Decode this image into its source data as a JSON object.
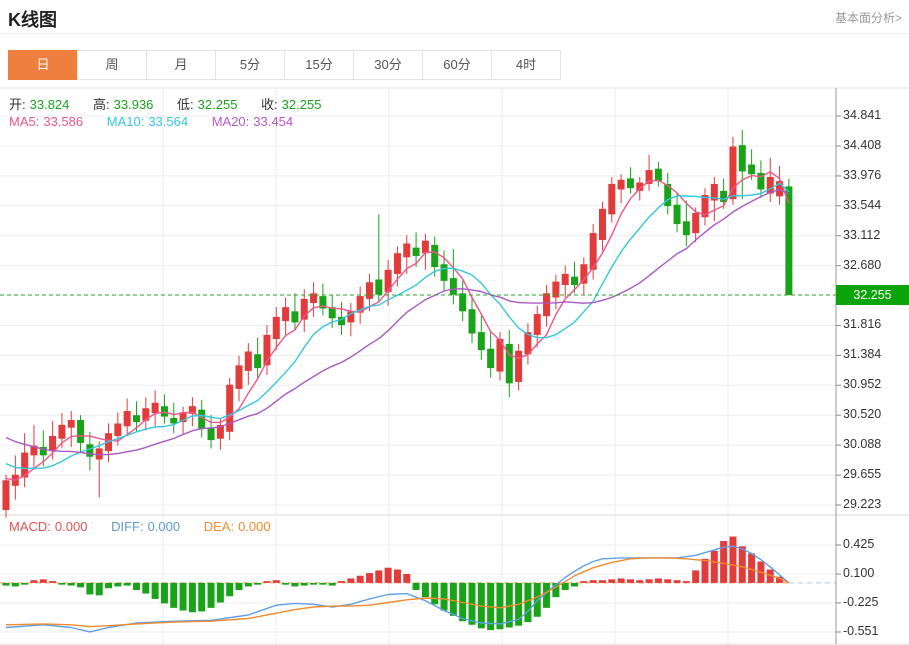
{
  "header": {
    "title": "K线图",
    "link": "基本面分析>"
  },
  "tabs": {
    "selected_index": 0,
    "items": [
      {
        "label": "日"
      },
      {
        "label": "周"
      },
      {
        "label": "月"
      },
      {
        "label": "5分"
      },
      {
        "label": "15分"
      },
      {
        "label": "30分"
      },
      {
        "label": "60分"
      },
      {
        "label": "4时"
      }
    ]
  },
  "info_bar": {
    "open_label": "开:",
    "open": "33.824",
    "high_label": "高:",
    "high": "33.936",
    "low_label": "低:",
    "low": "32.255",
    "close_label": "收:",
    "close": "32.255"
  },
  "ma_bar": {
    "ma5_label": "MA5:",
    "ma5": "33.586",
    "ma10_label": "MA10:",
    "ma10": "33.564",
    "ma20_label": "MA20:",
    "ma20": "33.454"
  },
  "macd_bar": {
    "macd_label": "MACD:",
    "macd": "0.000",
    "diff_label": "DIFF:",
    "diff": "0.000",
    "dea_label": "DEA:",
    "dea": "0.000"
  },
  "colors": {
    "up": "#e23b3b",
    "down": "#19a319",
    "ma5": "#f0558c",
    "ma10": "#35c6e0",
    "ma20": "#a959c4",
    "diff_line": "#5f9fe8",
    "dea_line": "#ef8b2f",
    "tab_selected": "#ee7f3e",
    "badge": "#0ba50b",
    "price_line": "#2aa52a",
    "zero_line": "#f0a050",
    "trail_line": "#a9c9ef",
    "grid": "#ececec",
    "axis": "#999999"
  },
  "chart_data": {
    "type": "candlestick+macd",
    "title": "K线图",
    "legend": [
      "MA5",
      "MA10",
      "MA20",
      "MACD",
      "DIFF",
      "DEA"
    ],
    "last_price": "32.255",
    "last_price_value": 32.255,
    "price_axis_labels": [
      "34.841",
      "34.408",
      "33.976",
      "33.544",
      "33.112",
      "32.680",
      "31.816",
      "31.384",
      "30.952",
      "30.520",
      "30.088",
      "29.655",
      "29.223"
    ],
    "price_axis_values": [
      34.841,
      34.408,
      33.976,
      33.544,
      33.112,
      32.68,
      31.816,
      31.384,
      30.952,
      30.52,
      30.088,
      29.655,
      29.223
    ],
    "price_axis_range": [
      34.841,
      29.223
    ],
    "macd_axis_labels": [
      "0.425",
      "0.100",
      "-0.225",
      "-0.551"
    ],
    "macd_axis_values": [
      0.425,
      0.1,
      -0.225,
      -0.551
    ],
    "candles_ohlc": [
      [
        29.15,
        29.66,
        29.04,
        29.58
      ],
      [
        29.5,
        29.94,
        29.3,
        29.66
      ],
      [
        29.62,
        30.26,
        29.48,
        29.98
      ],
      [
        29.94,
        30.38,
        29.74,
        30.08
      ],
      [
        30.06,
        30.3,
        29.78,
        29.94
      ],
      [
        30.0,
        30.44,
        29.88,
        30.22
      ],
      [
        30.18,
        30.55,
        30.04,
        30.38
      ],
      [
        30.34,
        30.58,
        30.06,
        30.45
      ],
      [
        30.45,
        30.52,
        29.98,
        30.12
      ],
      [
        30.1,
        30.28,
        29.72,
        29.92
      ],
      [
        29.88,
        30.14,
        29.33,
        30.04
      ],
      [
        30.0,
        30.4,
        29.84,
        30.26
      ],
      [
        30.22,
        30.56,
        30.08,
        30.4
      ],
      [
        30.36,
        30.76,
        30.22,
        30.58
      ],
      [
        30.52,
        30.72,
        30.28,
        30.42
      ],
      [
        30.44,
        30.78,
        30.3,
        30.62
      ],
      [
        30.55,
        30.88,
        30.36,
        30.7
      ],
      [
        30.65,
        30.82,
        30.4,
        30.5
      ],
      [
        30.48,
        30.7,
        30.26,
        30.4
      ],
      [
        30.42,
        30.64,
        30.24,
        30.56
      ],
      [
        30.54,
        30.78,
        30.36,
        30.65
      ],
      [
        30.6,
        30.74,
        30.2,
        30.32
      ],
      [
        30.34,
        30.52,
        30.04,
        30.16
      ],
      [
        30.18,
        30.48,
        30.02,
        30.38
      ],
      [
        30.28,
        31.06,
        30.16,
        30.96
      ],
      [
        30.9,
        31.38,
        30.72,
        31.24
      ],
      [
        31.16,
        31.56,
        30.96,
        31.44
      ],
      [
        31.4,
        31.64,
        31.06,
        31.2
      ],
      [
        31.24,
        31.82,
        31.1,
        31.68
      ],
      [
        31.62,
        32.08,
        31.46,
        31.94
      ],
      [
        31.88,
        32.22,
        31.68,
        32.08
      ],
      [
        32.02,
        32.28,
        31.74,
        31.86
      ],
      [
        31.9,
        32.34,
        31.72,
        32.2
      ],
      [
        32.14,
        32.44,
        31.94,
        32.28
      ],
      [
        32.24,
        32.42,
        31.96,
        32.06
      ],
      [
        32.08,
        32.26,
        31.78,
        31.92
      ],
      [
        31.94,
        32.16,
        31.68,
        31.82
      ],
      [
        31.86,
        32.14,
        31.66,
        32.02
      ],
      [
        32.0,
        32.38,
        31.84,
        32.24
      ],
      [
        32.2,
        32.56,
        32.02,
        32.44
      ],
      [
        32.48,
        33.42,
        32.16,
        32.26
      ],
      [
        32.3,
        32.76,
        32.1,
        32.62
      ],
      [
        32.56,
        32.96,
        32.38,
        32.86
      ],
      [
        32.8,
        33.12,
        32.56,
        33.0
      ],
      [
        32.94,
        33.16,
        32.66,
        32.82
      ],
      [
        32.86,
        33.14,
        32.62,
        33.04
      ],
      [
        32.98,
        33.1,
        32.52,
        32.66
      ],
      [
        32.7,
        32.9,
        32.32,
        32.46
      ],
      [
        32.5,
        32.92,
        32.12,
        32.26
      ],
      [
        32.28,
        32.46,
        31.88,
        32.02
      ],
      [
        32.05,
        32.24,
        31.56,
        31.7
      ],
      [
        31.72,
        31.96,
        31.32,
        31.46
      ],
      [
        31.48,
        31.72,
        31.06,
        31.2
      ],
      [
        31.15,
        31.72,
        31.02,
        31.62
      ],
      [
        31.55,
        31.75,
        30.78,
        30.98
      ],
      [
        31.0,
        31.55,
        30.88,
        31.45
      ],
      [
        31.4,
        31.85,
        31.25,
        31.72
      ],
      [
        31.68,
        32.1,
        31.5,
        31.98
      ],
      [
        31.95,
        32.4,
        31.8,
        32.28
      ],
      [
        32.22,
        32.55,
        32.05,
        32.45
      ],
      [
        32.4,
        32.68,
        32.22,
        32.56
      ],
      [
        32.52,
        32.74,
        32.28,
        32.4
      ],
      [
        32.42,
        32.8,
        32.26,
        32.7
      ],
      [
        32.62,
        33.28,
        32.48,
        33.15
      ],
      [
        33.05,
        33.6,
        32.9,
        33.5
      ],
      [
        33.42,
        33.96,
        33.3,
        33.86
      ],
      [
        33.78,
        34.0,
        33.58,
        33.92
      ],
      [
        33.94,
        34.1,
        33.72,
        33.8
      ],
      [
        33.76,
        33.96,
        33.62,
        33.88
      ],
      [
        33.86,
        34.28,
        33.76,
        34.06
      ],
      [
        34.08,
        34.18,
        33.82,
        33.9
      ],
      [
        33.86,
        34.02,
        33.42,
        33.54
      ],
      [
        33.56,
        33.72,
        33.16,
        33.28
      ],
      [
        33.32,
        33.62,
        32.96,
        33.12
      ],
      [
        33.15,
        33.52,
        33.02,
        33.44
      ],
      [
        33.38,
        33.8,
        33.26,
        33.7
      ],
      [
        33.62,
        33.96,
        33.32,
        33.86
      ],
      [
        33.76,
        33.94,
        33.5,
        33.6
      ],
      [
        33.64,
        34.54,
        33.56,
        34.4
      ],
      [
        34.42,
        34.64,
        33.64,
        34.04
      ],
      [
        34.14,
        34.36,
        33.92,
        34.0
      ],
      [
        34.02,
        34.2,
        33.66,
        33.78
      ],
      [
        33.72,
        34.24,
        33.6,
        33.96
      ],
      [
        33.68,
        34.12,
        33.56,
        33.9
      ],
      [
        33.824,
        33.936,
        32.255,
        32.255
      ]
    ],
    "ma_windows": [
      5,
      10,
      20
    ],
    "ma_seed_closes": [
      30.9,
      30.85,
      30.8,
      30.74,
      30.68,
      30.62,
      30.55,
      30.48,
      30.42,
      30.35,
      30.28,
      30.2,
      30.12,
      30.04,
      29.95,
      29.86,
      29.76,
      29.66,
      29.56,
      29.46
    ],
    "macd_hist": [
      -0.03,
      -0.04,
      -0.02,
      0.03,
      0.04,
      0.02,
      -0.02,
      -0.03,
      -0.05,
      -0.13,
      -0.14,
      -0.06,
      -0.04,
      -0.03,
      -0.08,
      -0.12,
      -0.18,
      -0.23,
      -0.28,
      -0.31,
      -0.33,
      -0.32,
      -0.28,
      -0.22,
      -0.15,
      -0.08,
      -0.04,
      -0.02,
      0.02,
      0.03,
      -0.02,
      -0.04,
      -0.03,
      -0.02,
      -0.02,
      -0.03,
      0.02,
      0.05,
      0.08,
      0.11,
      0.14,
      0.17,
      0.15,
      0.1,
      -0.08,
      -0.16,
      -0.24,
      -0.31,
      -0.37,
      -0.43,
      -0.47,
      -0.51,
      -0.53,
      -0.52,
      -0.5,
      -0.48,
      -0.44,
      -0.38,
      -0.28,
      -0.16,
      -0.08,
      -0.04,
      0.02,
      0.03,
      0.03,
      0.04,
      0.05,
      0.04,
      0.03,
      0.04,
      0.05,
      0.04,
      0.03,
      0.02,
      0.14,
      0.27,
      0.36,
      0.47,
      0.52,
      0.41,
      0.33,
      0.24,
      0.15,
      0.07,
      0.0
    ],
    "diff_points": [
      [
        0,
        -0.5
      ],
      [
        4,
        -0.47
      ],
      [
        7,
        -0.5
      ],
      [
        9,
        -0.55
      ],
      [
        11,
        -0.5
      ],
      [
        14,
        -0.45
      ],
      [
        18,
        -0.43
      ],
      [
        22,
        -0.42
      ],
      [
        26,
        -0.36
      ],
      [
        29,
        -0.25
      ],
      [
        31,
        -0.23
      ],
      [
        33,
        -0.24
      ],
      [
        35,
        -0.27
      ],
      [
        37,
        -0.24
      ],
      [
        39,
        -0.18
      ],
      [
        41,
        -0.13
      ],
      [
        43,
        -0.12
      ],
      [
        45,
        -0.2
      ],
      [
        47,
        -0.31
      ],
      [
        49,
        -0.4
      ],
      [
        51,
        -0.45
      ],
      [
        53,
        -0.46
      ],
      [
        55,
        -0.41
      ],
      [
        56,
        -0.32
      ],
      [
        57,
        -0.2
      ],
      [
        59,
        -0.02
      ],
      [
        60,
        0.06
      ],
      [
        61,
        0.13
      ],
      [
        62,
        0.19
      ],
      [
        63,
        0.24
      ],
      [
        64,
        0.27
      ],
      [
        66,
        0.28
      ],
      [
        68,
        0.28
      ],
      [
        70,
        0.28
      ],
      [
        72,
        0.28
      ],
      [
        74,
        0.31
      ],
      [
        76,
        0.37
      ],
      [
        77,
        0.4
      ],
      [
        78,
        0.41
      ],
      [
        79,
        0.38
      ],
      [
        80,
        0.33
      ],
      [
        81,
        0.26
      ],
      [
        82,
        0.18
      ],
      [
        83,
        0.09
      ],
      [
        84,
        0.0
      ]
    ],
    "dea_points": [
      [
        0,
        -0.47
      ],
      [
        4,
        -0.46
      ],
      [
        7,
        -0.47
      ],
      [
        9,
        -0.49
      ],
      [
        11,
        -0.48
      ],
      [
        14,
        -0.46
      ],
      [
        18,
        -0.44
      ],
      [
        22,
        -0.43
      ],
      [
        26,
        -0.4
      ],
      [
        29,
        -0.34
      ],
      [
        31,
        -0.3
      ],
      [
        33,
        -0.27
      ],
      [
        35,
        -0.26
      ],
      [
        37,
        -0.26
      ],
      [
        39,
        -0.25
      ],
      [
        41,
        -0.22
      ],
      [
        43,
        -0.19
      ],
      [
        45,
        -0.17
      ],
      [
        47,
        -0.18
      ],
      [
        49,
        -0.22
      ],
      [
        51,
        -0.26
      ],
      [
        53,
        -0.28
      ],
      [
        55,
        -0.24
      ],
      [
        57,
        -0.16
      ],
      [
        59,
        -0.05
      ],
      [
        61,
        0.08
      ],
      [
        63,
        0.17
      ],
      [
        65,
        0.23
      ],
      [
        67,
        0.27
      ],
      [
        69,
        0.28
      ],
      [
        71,
        0.28
      ],
      [
        73,
        0.27
      ],
      [
        75,
        0.25
      ],
      [
        77,
        0.22
      ],
      [
        79,
        0.18
      ],
      [
        81,
        0.12
      ],
      [
        83,
        0.05
      ],
      [
        84,
        0.0
      ]
    ],
    "vertical_gridlines_x": [
      163,
      276,
      389,
      502,
      615,
      728
    ]
  }
}
